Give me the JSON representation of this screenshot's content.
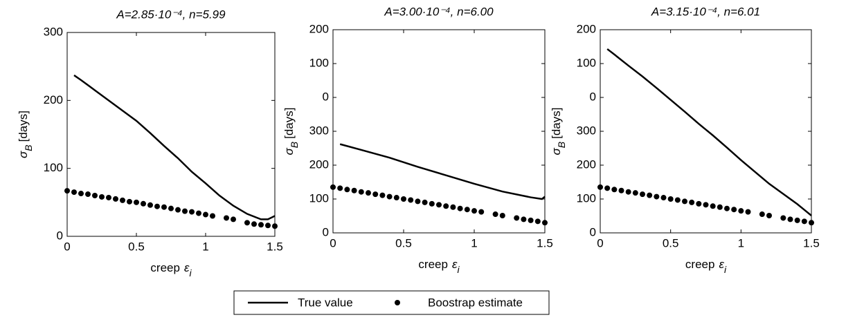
{
  "chart_data": [
    {
      "type": "line",
      "title": "A=2.85·10⁻⁴, n=5.99",
      "xlabel": [
        "creep",
        "ε",
        "i"
      ],
      "ylabel": [
        "σ",
        "B",
        "[days]"
      ],
      "xlim": [
        0,
        1.5
      ],
      "xticks": [
        0,
        0.5,
        1,
        1.5
      ],
      "ylim": [
        0,
        300
      ],
      "yticks": [
        0,
        100,
        200,
        300
      ],
      "series": [
        {
          "name": "True value",
          "kind": "line",
          "color": "#000000",
          "x": [
            0.05,
            0.1,
            0.2,
            0.3,
            0.4,
            0.5,
            0.6,
            0.7,
            0.8,
            0.9,
            1.0,
            1.1,
            1.2,
            1.3,
            1.4,
            1.45,
            1.5
          ],
          "values": [
            237,
            230,
            215,
            200,
            185,
            170,
            152,
            133,
            115,
            95,
            78,
            60,
            45,
            33,
            25,
            25,
            30
          ]
        },
        {
          "name": "Boostrap estimate",
          "kind": "dots",
          "color": "#000000",
          "x": [
            0,
            0.05,
            0.1,
            0.15,
            0.2,
            0.25,
            0.3,
            0.35,
            0.4,
            0.45,
            0.5,
            0.55,
            0.6,
            0.65,
            0.7,
            0.75,
            0.8,
            0.85,
            0.9,
            0.95,
            1.0,
            1.05,
            1.15,
            1.2,
            1.3,
            1.35,
            1.4,
            1.45,
            1.5
          ],
          "values": [
            67,
            65,
            63,
            62,
            60,
            58,
            57,
            55,
            53,
            51,
            50,
            48,
            46,
            44,
            43,
            41,
            39,
            37,
            36,
            34,
            32,
            30,
            27,
            25,
            20,
            18,
            17,
            16,
            15
          ]
        }
      ]
    },
    {
      "type": "line",
      "title": "A=3.00·10⁻⁴, n=6.00",
      "xlabel": [
        "creep",
        "ε",
        "i"
      ],
      "ylabel": [
        "σ",
        "B",
        "[days]"
      ],
      "xlim": [
        0,
        1.5
      ],
      "xticks": [
        0,
        0.5,
        1,
        1.5
      ],
      "ylim": [
        0,
        600
      ],
      "yticks": [
        0,
        100,
        200,
        300,
        {
          "value": 400,
          "label": "0"
        },
        {
          "value": 500,
          "label": "100"
        },
        {
          "value": 600,
          "label": "200"
        }
      ],
      "series": [
        {
          "name": "True value",
          "kind": "line",
          "color": "#000000",
          "x": [
            0.05,
            0.2,
            0.4,
            0.6,
            0.8,
            1.0,
            1.2,
            1.4,
            1.48,
            1.5
          ],
          "values": [
            262,
            245,
            222,
            195,
            170,
            145,
            122,
            105,
            100,
            107
          ]
        },
        {
          "name": "Boostrap estimate",
          "kind": "dots",
          "color": "#000000",
          "x": [
            0,
            0.05,
            0.1,
            0.15,
            0.2,
            0.25,
            0.3,
            0.35,
            0.4,
            0.45,
            0.5,
            0.55,
            0.6,
            0.65,
            0.7,
            0.75,
            0.8,
            0.85,
            0.9,
            0.95,
            1.0,
            1.05,
            1.15,
            1.2,
            1.3,
            1.35,
            1.4,
            1.45,
            1.5
          ],
          "values": [
            135,
            132,
            128,
            125,
            121,
            118,
            114,
            111,
            107,
            104,
            100,
            97,
            93,
            90,
            86,
            83,
            79,
            76,
            72,
            69,
            65,
            62,
            55,
            51,
            44,
            40,
            37,
            34,
            30
          ]
        }
      ]
    },
    {
      "type": "line",
      "title": "A=3.15·10⁻⁴, n=6.01",
      "xlabel": [
        "creep",
        "ε",
        "i"
      ],
      "ylabel": [
        "σ",
        "B",
        "[days]"
      ],
      "xlim": [
        0,
        1.5
      ],
      "xticks": [
        0,
        0.5,
        1,
        1.5
      ],
      "ylim": [
        0,
        600
      ],
      "yticks": [
        0,
        100,
        200,
        300,
        {
          "value": 400,
          "label": "0"
        },
        {
          "value": 500,
          "label": "100"
        },
        {
          "value": 600,
          "label": "200"
        }
      ],
      "series": [
        {
          "name": "True value",
          "kind": "line",
          "color": "#000000",
          "x": [
            0.05,
            0.1,
            0.2,
            0.3,
            0.4,
            0.5,
            0.6,
            0.7,
            0.8,
            0.9,
            1.0,
            1.1,
            1.2,
            1.3,
            1.4,
            1.45,
            1.5
          ],
          "values": [
            543,
            527,
            494,
            462,
            428,
            393,
            358,
            322,
            288,
            252,
            215,
            180,
            145,
            115,
            85,
            68,
            51
          ]
        },
        {
          "name": "Boostrap estimate",
          "kind": "dots",
          "color": "#000000",
          "x": [
            0,
            0.05,
            0.1,
            0.15,
            0.2,
            0.25,
            0.3,
            0.35,
            0.4,
            0.45,
            0.5,
            0.55,
            0.6,
            0.65,
            0.7,
            0.75,
            0.8,
            0.85,
            0.9,
            0.95,
            1.0,
            1.05,
            1.15,
            1.2,
            1.3,
            1.35,
            1.4,
            1.45,
            1.5
          ],
          "values": [
            135,
            132,
            128,
            125,
            121,
            118,
            114,
            111,
            107,
            104,
            100,
            97,
            93,
            90,
            86,
            83,
            79,
            76,
            72,
            69,
            65,
            62,
            55,
            51,
            44,
            40,
            37,
            34,
            30
          ]
        }
      ]
    }
  ]
}
